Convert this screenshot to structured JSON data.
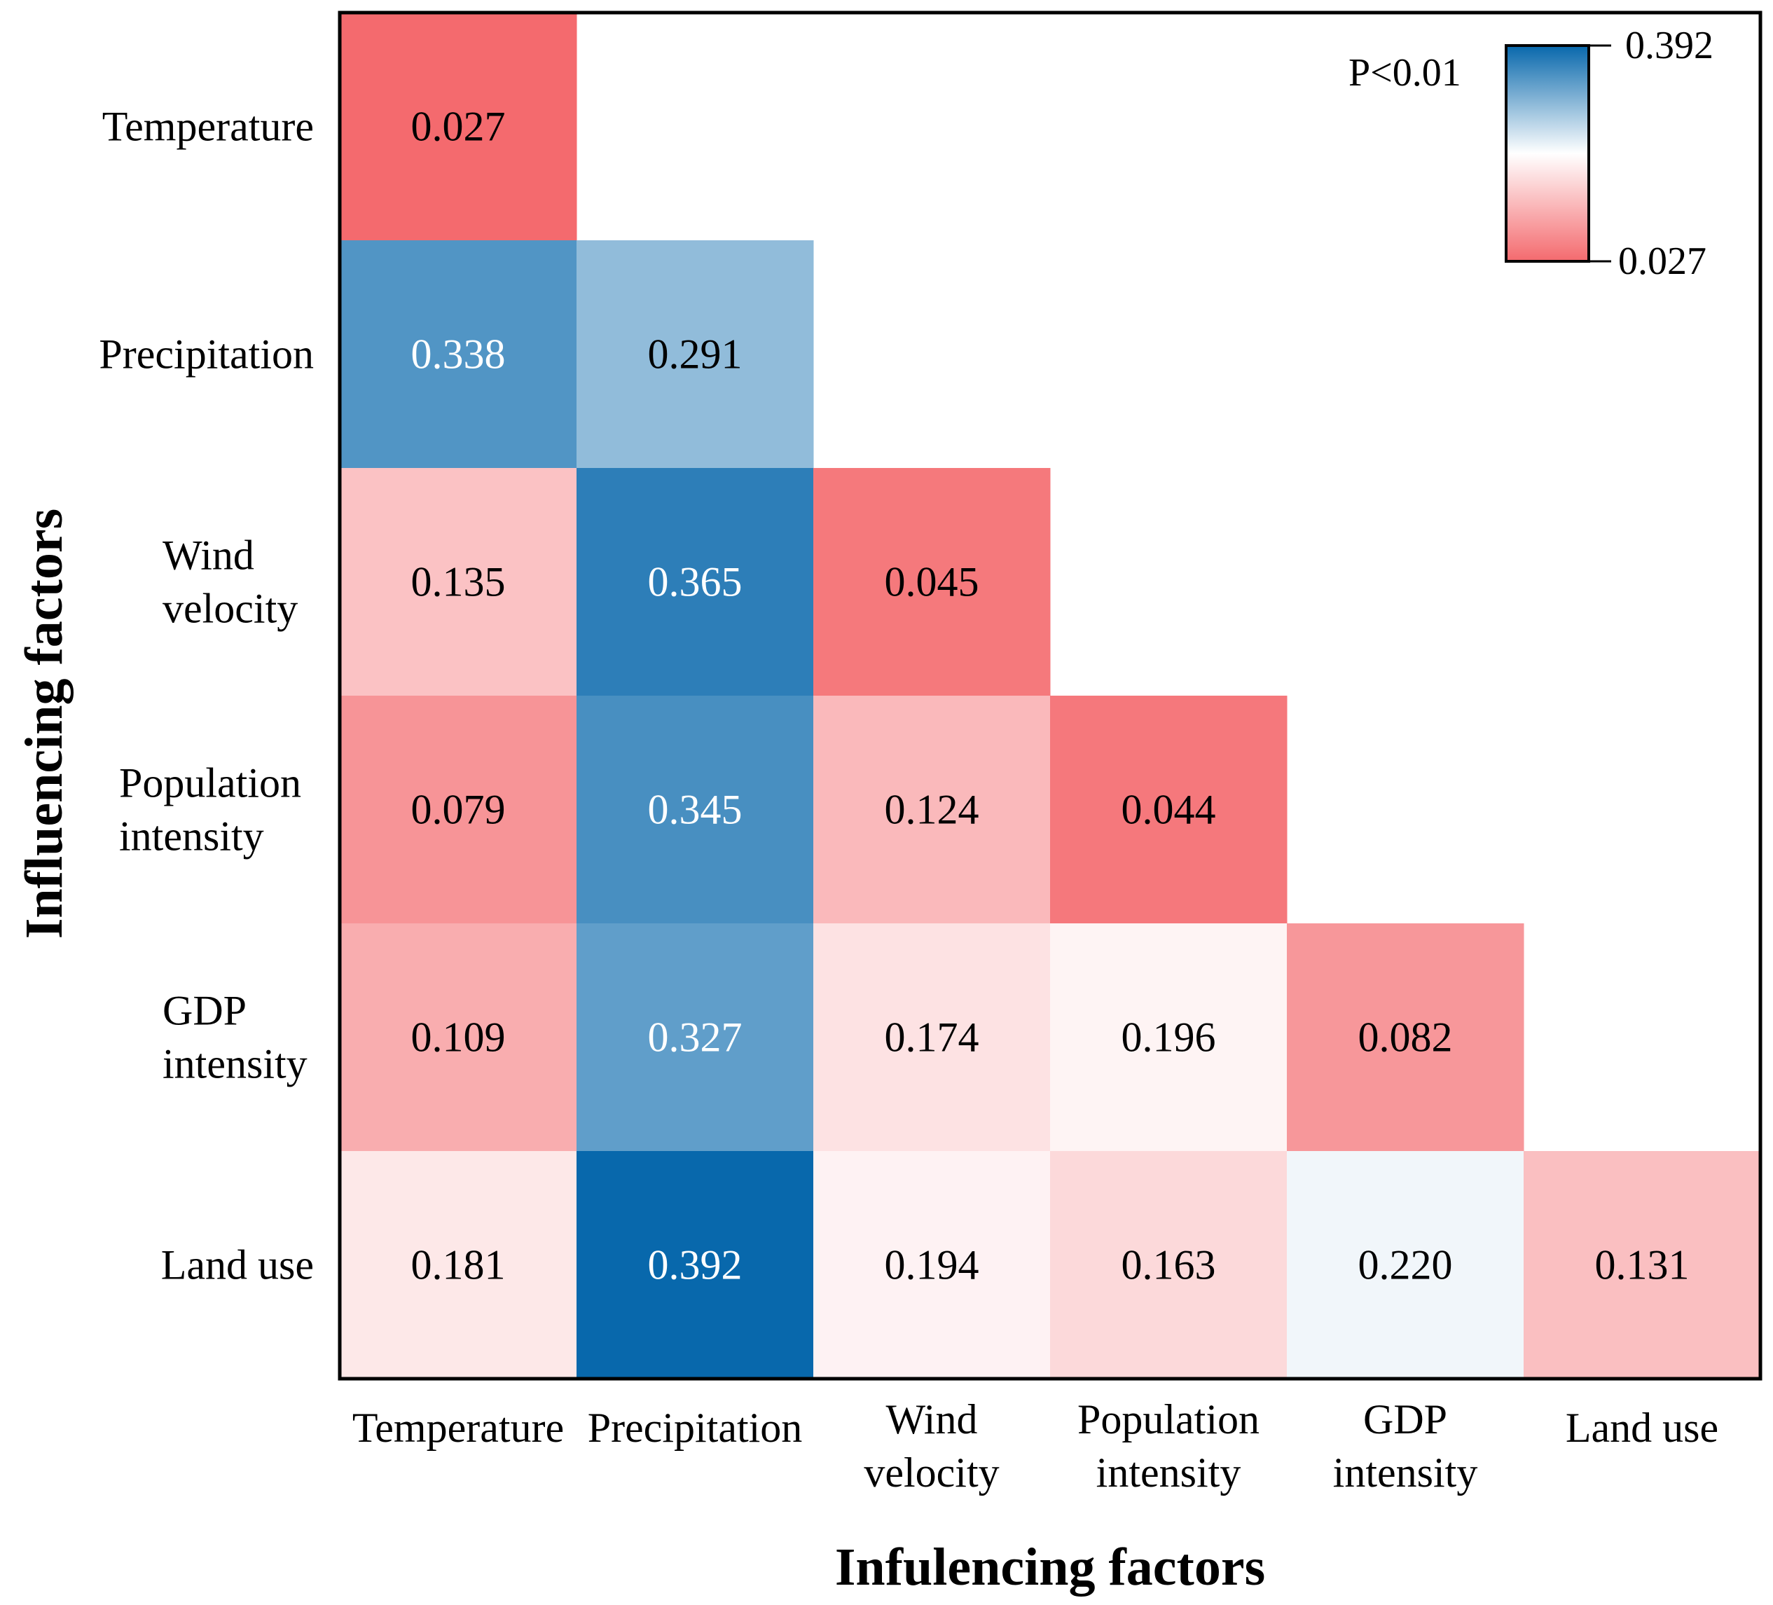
{
  "chart_data": {
    "type": "heatmap",
    "subtype": "lower-triangular",
    "xlabel": "Infulencing factors",
    "ylabel": "Influencing factors",
    "x_categories": [
      [
        "Temperature"
      ],
      [
        "Precipitation"
      ],
      [
        "Wind",
        "velocity"
      ],
      [
        "Population",
        "intensity"
      ],
      [
        "GDP",
        "intensity"
      ],
      [
        "Land use"
      ]
    ],
    "y_categories": [
      [
        "Temperature"
      ],
      [
        "Precipitation"
      ],
      [
        "Wind",
        "velocity"
      ],
      [
        "Population",
        "intensity"
      ],
      [
        "GDP",
        "intensity"
      ],
      [
        "Land use"
      ]
    ],
    "values": [
      [
        0.027
      ],
      [
        0.338,
        0.291
      ],
      [
        0.135,
        0.365,
        0.045
      ],
      [
        0.079,
        0.345,
        0.124,
        0.044
      ],
      [
        0.109,
        0.327,
        0.174,
        0.196,
        0.082
      ],
      [
        0.181,
        0.392,
        0.194,
        0.163,
        0.22,
        0.131
      ]
    ],
    "value_labels": [
      [
        "0.027"
      ],
      [
        "0.338",
        "0.291"
      ],
      [
        "0.135",
        "0.365",
        "0.045"
      ],
      [
        "0.079",
        "0.345",
        "0.124",
        "0.044"
      ],
      [
        "0.109",
        "0.327",
        "0.174",
        "0.196",
        "0.082"
      ],
      [
        "0.181",
        "0.392",
        "0.194",
        "0.163",
        "0.220",
        "0.131"
      ]
    ],
    "colorbar": {
      "min": 0.027,
      "max": 0.392,
      "min_label": "0.027",
      "max_label": "0.392",
      "low_color": "#f46a6e",
      "mid_color": "#ffffff",
      "high_color": "#0868ac",
      "placement": "top-right"
    },
    "annotation": "P<0.01"
  }
}
